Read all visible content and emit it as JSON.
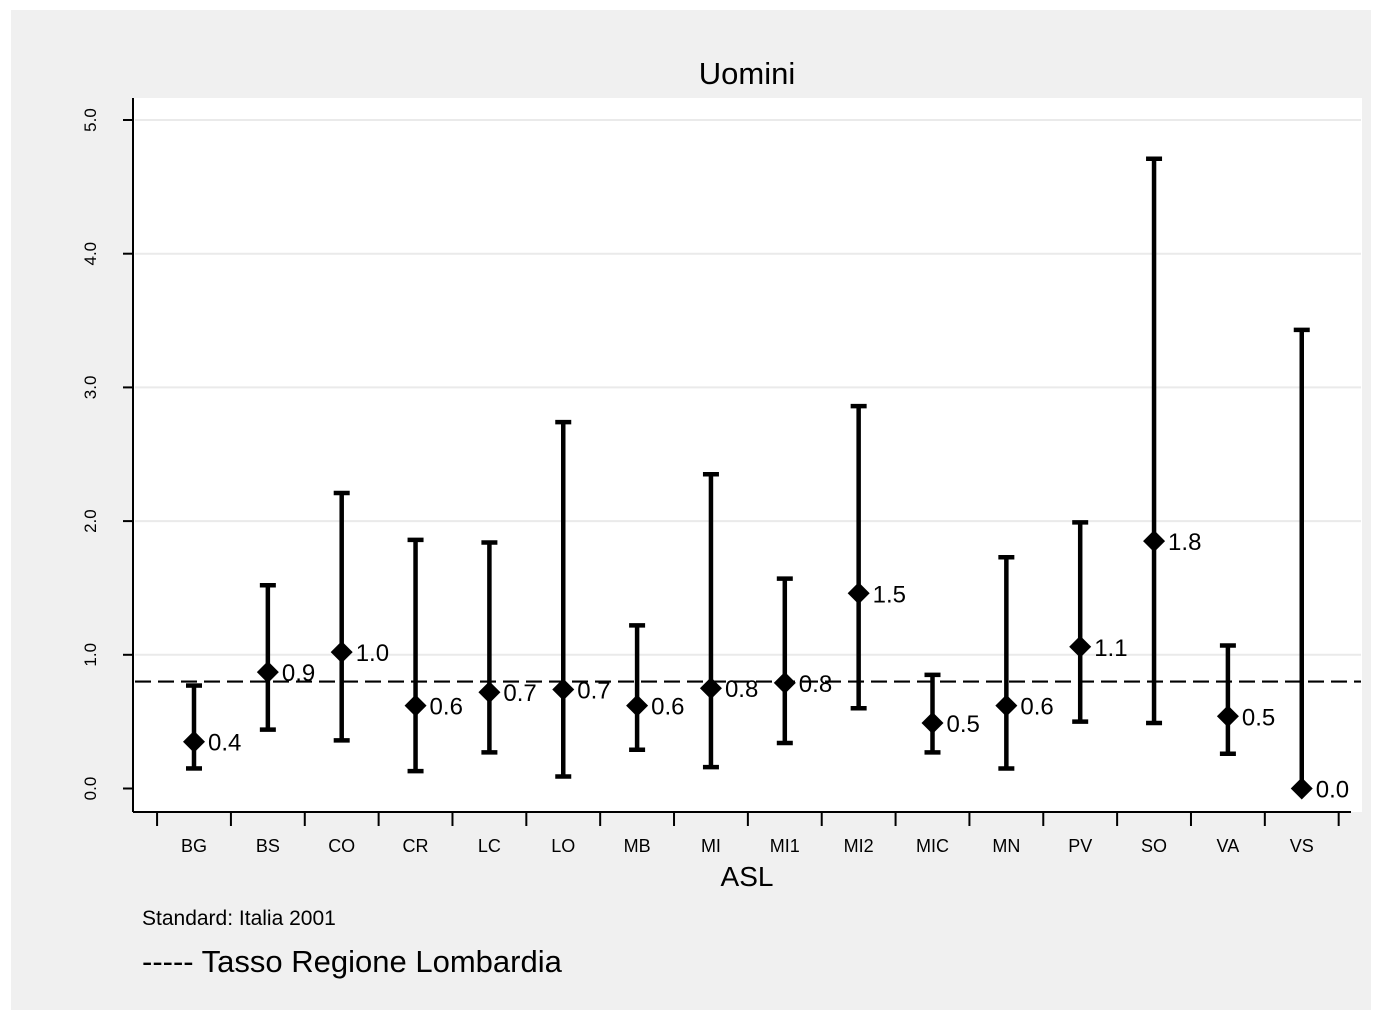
{
  "chart_data": {
    "type": "scatter",
    "title": "Uomini",
    "xlabel": "ASL",
    "ylabel": "",
    "ylim": [
      -0.2,
      5.15
    ],
    "yticks": [
      0.0,
      1.0,
      2.0,
      3.0,
      4.0,
      5.0
    ],
    "ytick_labels": [
      "0.0",
      "1.0",
      "2.0",
      "3.0",
      "4.0",
      "5.0"
    ],
    "categories": [
      "BG",
      "BS",
      "CO",
      "CR",
      "LC",
      "LO",
      "MB",
      "MI",
      "MI1",
      "MI2",
      "MIC",
      "MN",
      "PV",
      "SO",
      "VA",
      "VS"
    ],
    "series": [
      {
        "values": [
          0.35,
          0.87,
          1.02,
          0.62,
          0.72,
          0.74,
          0.62,
          0.75,
          0.79,
          1.46,
          0.49,
          0.62,
          1.06,
          1.85,
          0.54,
          0.0
        ],
        "lower": [
          0.15,
          0.44,
          0.36,
          0.13,
          0.27,
          0.09,
          0.29,
          0.16,
          0.34,
          0.6,
          0.27,
          0.15,
          0.5,
          0.49,
          0.26,
          0.0
        ],
        "upper": [
          0.77,
          1.52,
          2.21,
          1.86,
          1.84,
          2.74,
          1.22,
          2.35,
          1.57,
          2.86,
          0.85,
          1.73,
          1.99,
          4.71,
          1.07,
          3.43
        ],
        "data_labels": [
          "0.4",
          "0.9",
          "1.0",
          "0.6",
          "0.7",
          "0.7",
          "0.6",
          "0.8",
          "0.8",
          "1.5",
          "0.5",
          "0.6",
          "1.1",
          "1.8",
          "0.5",
          "0.0"
        ]
      }
    ],
    "reference_line": 0.8,
    "grid": true,
    "colors": {
      "marker": "#000000",
      "grid": "#eaeaea",
      "plot_bg": "#ffffff",
      "outer_bg": "#f0f0f0"
    }
  },
  "notes": {
    "standard": "Standard: Italia 2001",
    "legend": "----- Tasso Regione Lombardia"
  }
}
